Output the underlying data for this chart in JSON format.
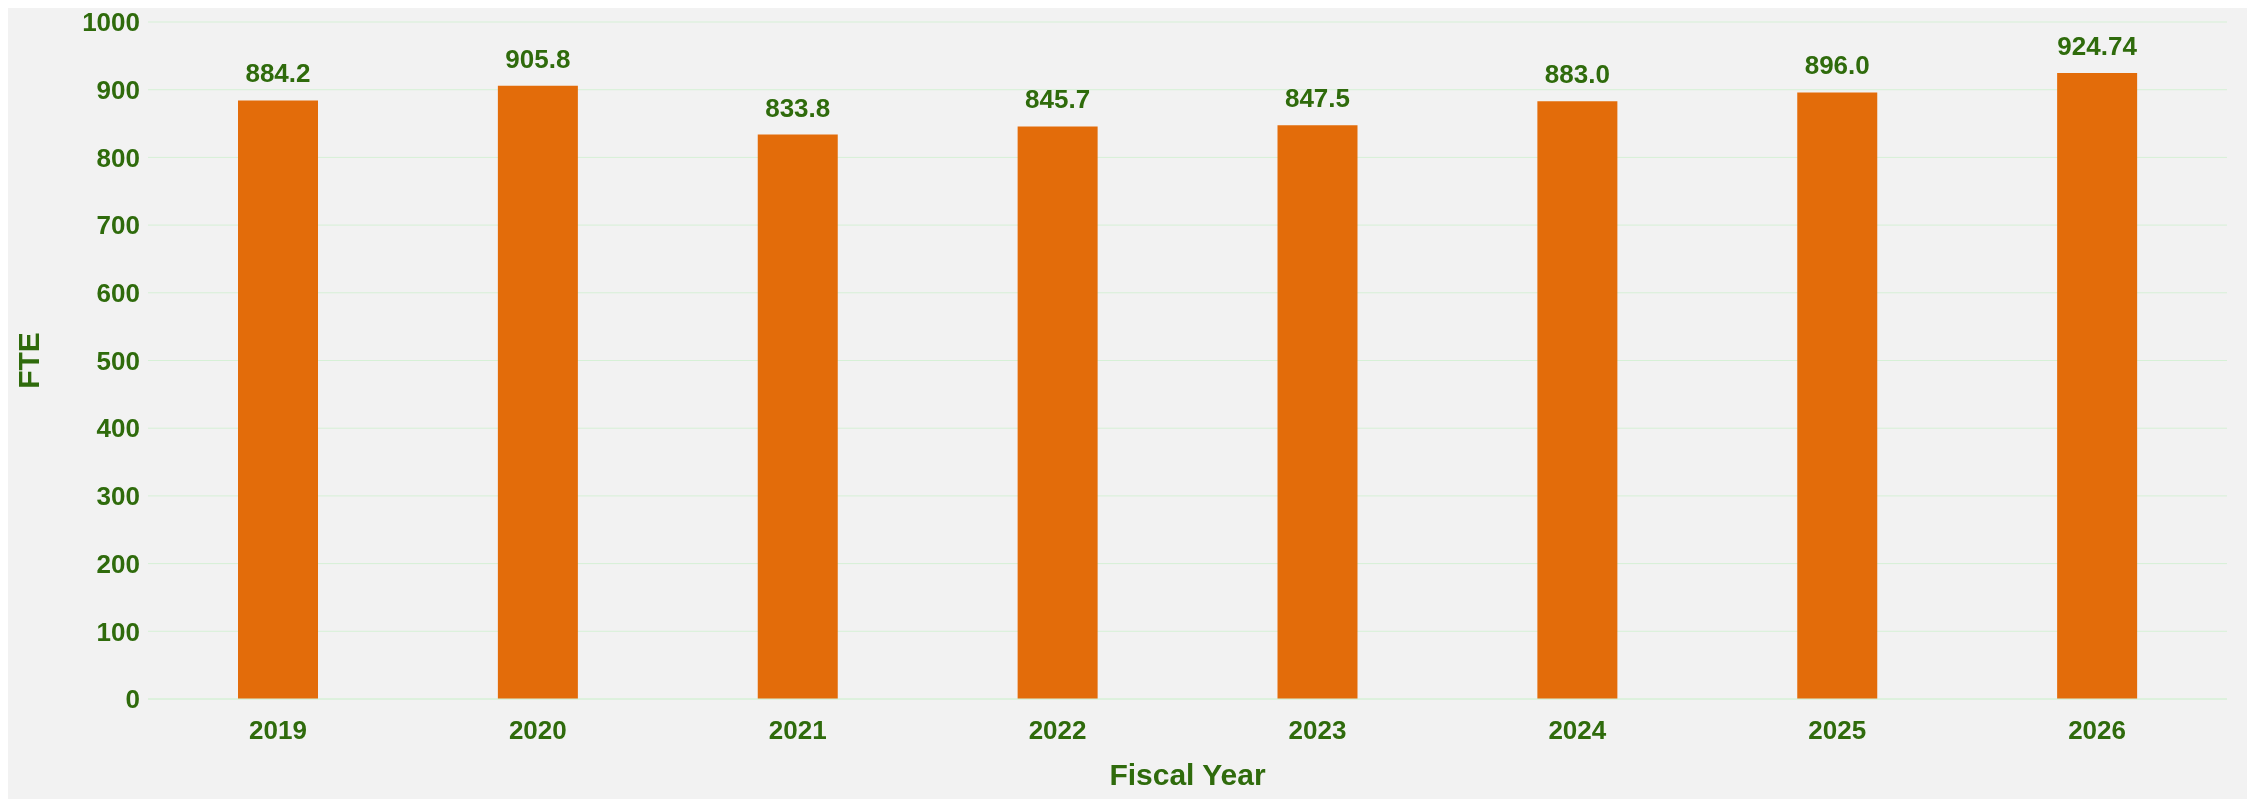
{
  "chart_data": {
    "type": "bar",
    "xlabel": "Fiscal Year",
    "ylabel": "FTE",
    "categories": [
      "2019",
      "2020",
      "2021",
      "2022",
      "2023",
      "2024",
      "2025",
      "2026"
    ],
    "values": [
      884.2,
      905.8,
      833.8,
      845.7,
      847.5,
      883.0,
      896.0,
      924.74
    ],
    "value_labels": [
      "884.2",
      "905.8",
      "833.8",
      "845.7",
      "847.5",
      "883.0",
      "896.0",
      "924.74"
    ],
    "color": "#e36c0a",
    "ylim": [
      0,
      1000
    ],
    "yticks": [
      0,
      100,
      200,
      300,
      400,
      500,
      600,
      700,
      800,
      900,
      1000
    ],
    "grid": "y",
    "legend": false
  }
}
